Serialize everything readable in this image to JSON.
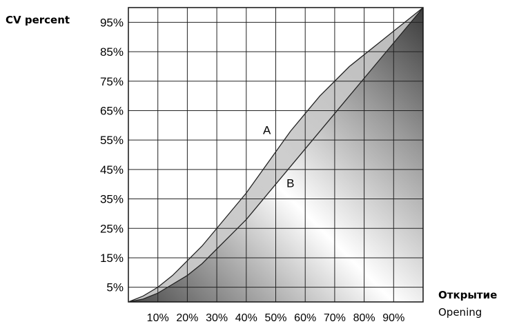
{
  "chart_data": {
    "type": "line",
    "ylabel": "CV percent",
    "xlabel": "Открытие",
    "xlabel_secondary": "Opening",
    "xlim": [
      0,
      100
    ],
    "ylim": [
      0,
      100
    ],
    "grid": true,
    "x_ticks": [
      "10%",
      "20%",
      "30%",
      "40%",
      "50%",
      "60%",
      "70%",
      "80%",
      "90%"
    ],
    "y_ticks": [
      "5%",
      "15%",
      "25%",
      "35%",
      "45%",
      "55%",
      "65%",
      "75%",
      "85%",
      "95%"
    ],
    "x_tick_values": [
      10,
      20,
      30,
      40,
      50,
      60,
      70,
      80,
      90
    ],
    "y_tick_values": [
      5,
      15,
      25,
      35,
      45,
      55,
      65,
      75,
      85,
      95
    ],
    "annotations": [
      {
        "text": "A",
        "x": 47,
        "y": 57
      },
      {
        "text": "B",
        "x": 55,
        "y": 39
      }
    ],
    "series": [
      {
        "name": "A",
        "x": [
          0,
          5,
          10,
          15,
          20,
          25,
          30,
          35,
          40,
          45,
          50,
          55,
          60,
          65,
          70,
          75,
          80,
          85,
          90,
          95,
          100
        ],
        "values": [
          0,
          2,
          5,
          9,
          14,
          19,
          25,
          31,
          37,
          44,
          51,
          58,
          64,
          70,
          75,
          80,
          84,
          88,
          92,
          96,
          100
        ]
      },
      {
        "name": "B",
        "x": [
          0,
          5,
          10,
          15,
          20,
          25,
          30,
          35,
          40,
          45,
          50,
          55,
          60,
          65,
          70,
          75,
          80,
          85,
          90,
          95,
          100
        ],
        "values": [
          0,
          1,
          3,
          6,
          9,
          13,
          18,
          23,
          28,
          34,
          40,
          46,
          52,
          58,
          64,
          70,
          76,
          82,
          88,
          94,
          100
        ]
      }
    ]
  }
}
